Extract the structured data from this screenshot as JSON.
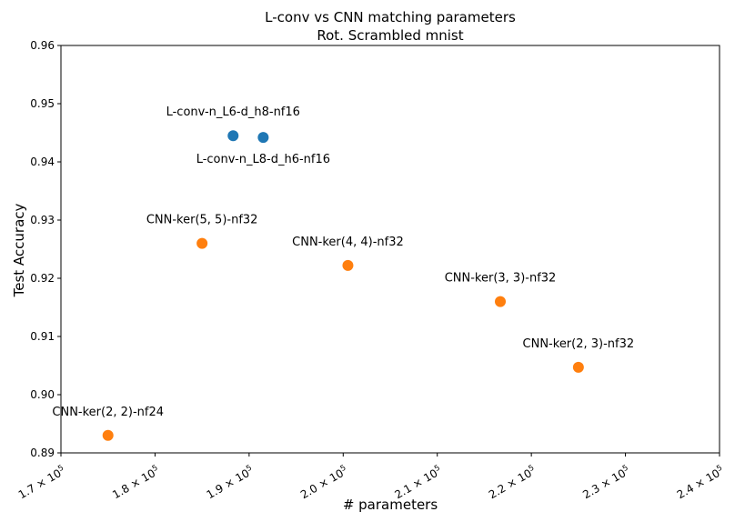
{
  "chart_data": {
    "type": "scatter",
    "title": "L-conv vs CNN matching parameters",
    "subtitle": "Rot. Scrambled mnist",
    "xlabel": "# parameters",
    "ylabel": "Test Accuracy",
    "xlim": [
      170000,
      240000
    ],
    "ylim": [
      0.89,
      0.96
    ],
    "x_ticks": [
      170000,
      180000,
      190000,
      200000,
      210000,
      220000,
      230000,
      240000
    ],
    "x_tick_labels": [
      {
        "mantissa": "1.7",
        "base": "× 10",
        "exp": "5"
      },
      {
        "mantissa": "1.8",
        "base": "× 10",
        "exp": "5"
      },
      {
        "mantissa": "1.9",
        "base": "× 10",
        "exp": "5"
      },
      {
        "mantissa": "2.0",
        "base": "× 10",
        "exp": "5"
      },
      {
        "mantissa": "2.1",
        "base": "× 10",
        "exp": "5"
      },
      {
        "mantissa": "2.2",
        "base": "× 10",
        "exp": "5"
      },
      {
        "mantissa": "2.3",
        "base": "× 10",
        "exp": "5"
      },
      {
        "mantissa": "2.4",
        "base": "× 10",
        "exp": "5"
      }
    ],
    "y_ticks": [
      0.89,
      0.9,
      0.91,
      0.92,
      0.93,
      0.94,
      0.95,
      0.96
    ],
    "y_tick_labels": [
      "0.89",
      "0.90",
      "0.91",
      "0.92",
      "0.93",
      "0.94",
      "0.95",
      "0.96"
    ],
    "grid": false,
    "series": [
      {
        "color": "#1f77b4",
        "points": [
          {
            "x": 188300,
            "y": 0.9445,
            "label": "L-conv-n_L6-d_h8-nf16",
            "label_pos": "above"
          },
          {
            "x": 191500,
            "y": 0.9442,
            "label": "L-conv-n_L8-d_h6-nf16",
            "label_pos": "below"
          }
        ]
      },
      {
        "color": "#ff7f0e",
        "points": [
          {
            "x": 175000,
            "y": 0.893,
            "label": "CNN-ker(2, 2)-nf24",
            "label_pos": "above"
          },
          {
            "x": 185000,
            "y": 0.926,
            "label": "CNN-ker(5, 5)-nf32",
            "label_pos": "above"
          },
          {
            "x": 200500,
            "y": 0.9222,
            "label": "CNN-ker(4, 4)-nf32",
            "label_pos": "above"
          },
          {
            "x": 216700,
            "y": 0.916,
            "label": "CNN-ker(3, 3)-nf32",
            "label_pos": "above"
          },
          {
            "x": 225000,
            "y": 0.9047,
            "label": "CNN-ker(2, 3)-nf32",
            "label_pos": "above"
          }
        ]
      }
    ]
  }
}
